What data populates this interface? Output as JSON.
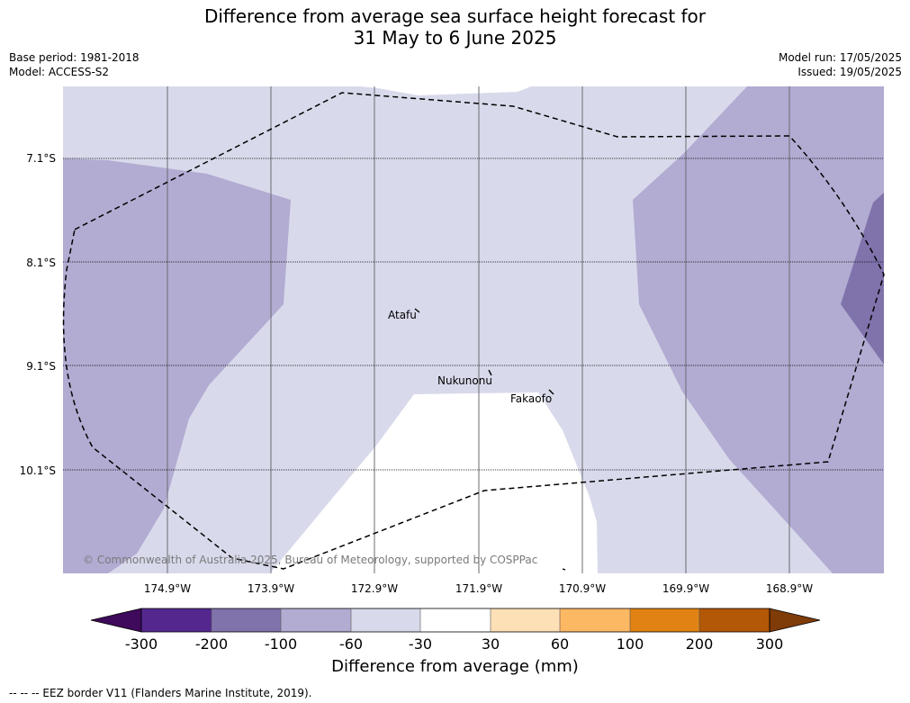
{
  "title": {
    "line1": "Difference from average sea surface height forecast for",
    "line2": "31 May to 6 June 2025"
  },
  "meta": {
    "base_period": "Base period: 1981-2018",
    "model": "Model: ACCESS-S2",
    "model_run": "Model run: 17/05/2025",
    "issued": "Issued: 19/05/2025"
  },
  "map": {
    "latitudes": [
      "7.1°S",
      "8.1°S",
      "9.1°S",
      "10.1°S"
    ],
    "longitudes": [
      "174.9°W",
      "173.9°W",
      "172.9°W",
      "171.9°W",
      "170.9°W",
      "169.9°W",
      "168.9°W"
    ],
    "places": [
      "Atafu",
      "Nukunonu",
      "Fakaofo"
    ],
    "copyright": "© Commonwealth of Australia 2025, Bureau of Meteorology, supported by COSPPac"
  },
  "colorbar": {
    "title": "Difference from average (mm)",
    "ticks": [
      "-300",
      "-200",
      "-100",
      "-60",
      "-30",
      "30",
      "60",
      "100",
      "200",
      "300"
    ],
    "colors": [
      "#3f0a5b",
      "#54278f",
      "#8073ac",
      "#b2abd2",
      "#d8daeb",
      "#ffffff",
      "#fee0b6",
      "#fdb863",
      "#e08214",
      "#b35806",
      "#7f3b08"
    ]
  },
  "footnote": "--  --  -- EEZ border V11 (Flanders Marine Institute, 2019)."
}
